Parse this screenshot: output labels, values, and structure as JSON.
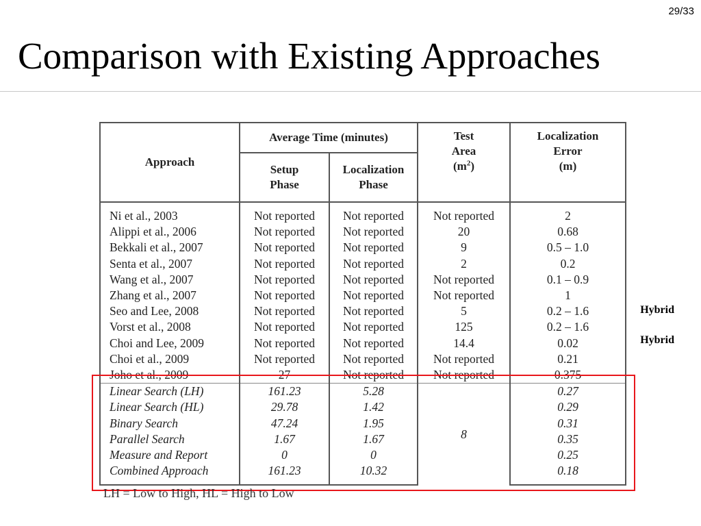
{
  "slide": {
    "page_number": "29/33",
    "title": "Comparison with Existing Approaches"
  },
  "table": {
    "headers": {
      "approach": "Approach",
      "avg_time": "Average Time (minutes)",
      "setup_line1": "Setup",
      "setup_line2": "Phase",
      "loc_phase_line1": "Localization",
      "loc_phase_line2": "Phase",
      "test_area_line1": "Test",
      "test_area_line2": "Area",
      "test_area_unit": "(m",
      "test_area_unit_sup": "2",
      "test_area_unit_close": ")",
      "error_line1": "Localization",
      "error_line2": "Error",
      "error_unit": "(m)"
    },
    "rows": [
      {
        "approach": "Ni et al., 2003",
        "setup": "Not reported",
        "localization": "Not reported",
        "area": "Not reported",
        "error": "2"
      },
      {
        "approach": "Alippi et al., 2006",
        "setup": "Not reported",
        "localization": "Not reported",
        "area": "20",
        "error": "0.68"
      },
      {
        "approach": "Bekkali et al., 2007",
        "setup": "Not reported",
        "localization": "Not reported",
        "area": "9",
        "error": "0.5 – 1.0"
      },
      {
        "approach": "Senta et al., 2007",
        "setup": "Not reported",
        "localization": "Not reported",
        "area": "2",
        "error": "0.2"
      },
      {
        "approach": "Wang et al., 2007",
        "setup": "Not reported",
        "localization": "Not reported",
        "area": "Not reported",
        "error": "0.1 – 0.9"
      },
      {
        "approach": "Zhang et al., 2007",
        "setup": "Not reported",
        "localization": "Not reported",
        "area": "Not reported",
        "error": "1"
      },
      {
        "approach": "Seo and Lee, 2008",
        "setup": "Not reported",
        "localization": "Not reported",
        "area": "5",
        "error": "0.2 – 1.6"
      },
      {
        "approach": "Vorst et al., 2008",
        "setup": "Not reported",
        "localization": "Not reported",
        "area": "125",
        "error": "0.2 – 1.6"
      },
      {
        "approach": "Choi and Lee, 2009",
        "setup": "Not reported",
        "localization": "Not reported",
        "area": "14.4",
        "error": "0.02"
      },
      {
        "approach": "Choi et al., 2009",
        "setup": "Not reported",
        "localization": "Not reported",
        "area": "Not reported",
        "error": "0.21"
      },
      {
        "approach": "Joho et al., 2009",
        "setup": "27",
        "localization": "Not reported",
        "area": "Not reported",
        "error": "0.375"
      }
    ],
    "proposed_rows": [
      {
        "approach": "Linear Search (LH)",
        "setup": "161.23",
        "localization": "5.28",
        "error": "0.27"
      },
      {
        "approach": "Linear Search (HL)",
        "setup": "29.78",
        "localization": "1.42",
        "error": "0.29"
      },
      {
        "approach": "Binary Search",
        "setup": "47.24",
        "localization": "1.95",
        "error": "0.31"
      },
      {
        "approach": "Parallel Search",
        "setup": "1.67",
        "localization": "1.67",
        "error": "0.35"
      },
      {
        "approach": "Measure and Report",
        "setup": "0",
        "localization": "0",
        "error": "0.25"
      },
      {
        "approach": "Combined Approach",
        "setup": "161.23",
        "localization": "10.32",
        "error": "0.18"
      }
    ],
    "proposed_area": "8"
  },
  "annotations": {
    "hybrid_1": "Hybrid",
    "hybrid_2": "Hybrid",
    "footnote": "LH = Low to High, HL = High to Low",
    "highlight_color": "#e8161b"
  }
}
